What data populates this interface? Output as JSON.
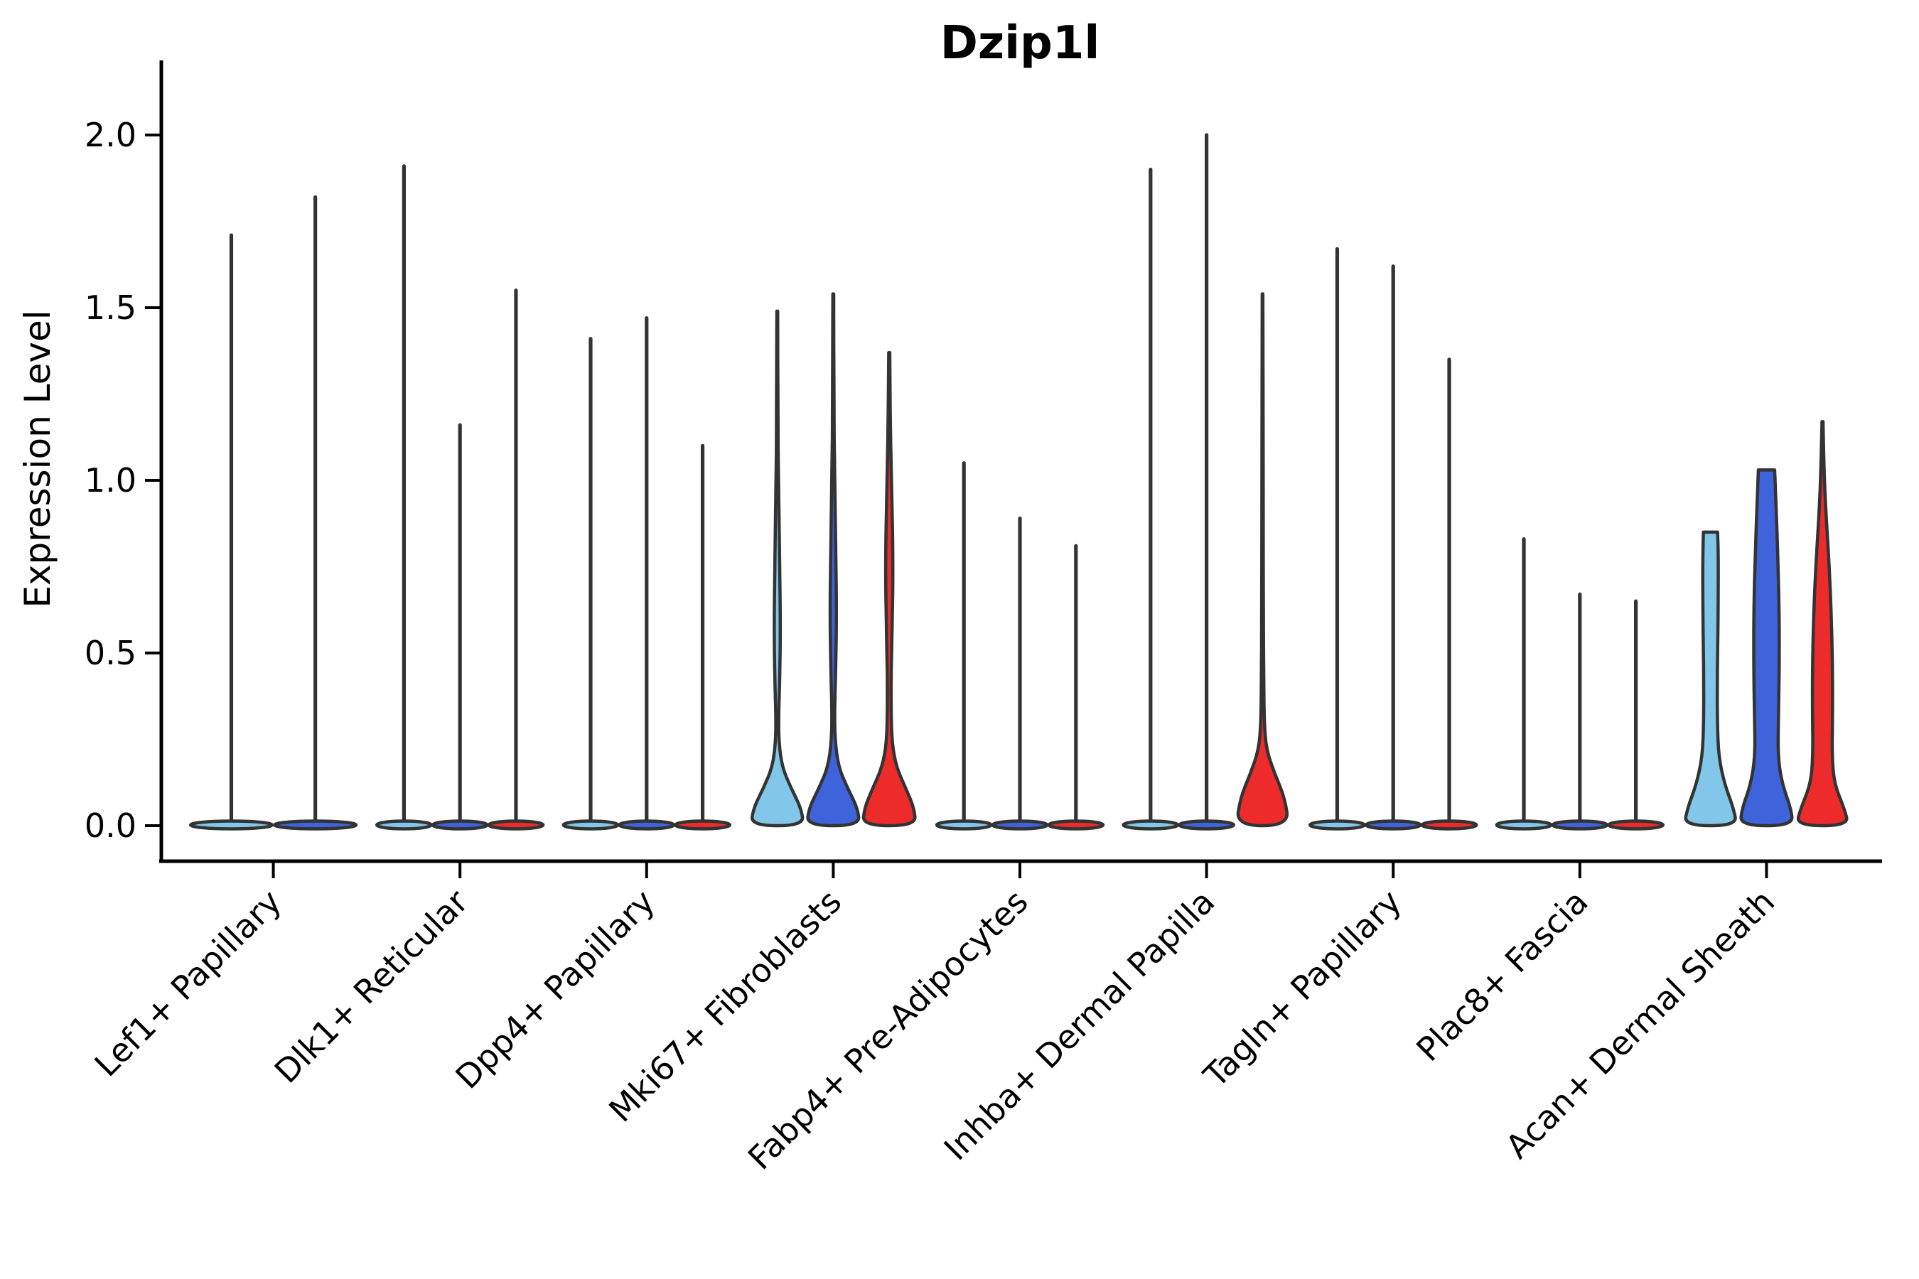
{
  "chart_data": {
    "type": "violin",
    "title": "Dzip1l",
    "ylabel": "Expression Level",
    "xlabel": "",
    "yticks": [
      0.0,
      0.5,
      1.0,
      1.5,
      2.0
    ],
    "ytick_labels": [
      "0.0",
      "0.5",
      "1.0",
      "1.5",
      "2.0"
    ],
    "axis_range": [
      -0.1,
      2.21
    ],
    "grid": false,
    "legend": "none",
    "groups_note": "up to 3 violins per category: lightblue, blue, red",
    "categories": [
      {
        "label": "Lef1+ Papillary",
        "violins": [
          {
            "fill": "lightblue",
            "max": 1.71,
            "style": "collapsed"
          },
          {
            "fill": "blue",
            "max": 1.82,
            "style": "collapsed"
          }
        ]
      },
      {
        "label": "Dlk1+ Reticular",
        "violins": [
          {
            "fill": "lightblue",
            "max": 1.91,
            "style": "collapsed"
          },
          {
            "fill": "blue",
            "max": 1.16,
            "style": "collapsed"
          },
          {
            "fill": "red",
            "max": 1.55,
            "style": "collapsed"
          }
        ]
      },
      {
        "label": "Dpp4+ Papillary",
        "violins": [
          {
            "fill": "lightblue",
            "max": 1.41,
            "style": "collapsed"
          },
          {
            "fill": "blue",
            "max": 1.47,
            "style": "collapsed"
          },
          {
            "fill": "red",
            "max": 1.1,
            "style": "collapsed"
          }
        ]
      },
      {
        "label": "Mki67+ Fibroblasts",
        "violins": [
          {
            "fill": "lightblue",
            "max": 1.49,
            "style": "body",
            "profile": [
              [
                1.49,
                0.015
              ],
              [
                1.2,
                0.02
              ],
              [
                0.95,
                0.05
              ],
              [
                0.72,
                0.1
              ],
              [
                0.55,
                0.115
              ],
              [
                0.42,
                0.09
              ],
              [
                0.32,
                0.05
              ],
              [
                0.24,
                0.06
              ],
              [
                0.17,
                0.18
              ],
              [
                0.11,
                0.5
              ],
              [
                0.05,
                0.88
              ],
              [
                0.0,
                0.97
              ]
            ]
          },
          {
            "fill": "blue",
            "max": 1.54,
            "style": "body",
            "profile": [
              [
                1.54,
                0.015
              ],
              [
                1.25,
                0.02
              ],
              [
                1.0,
                0.05
              ],
              [
                0.78,
                0.1
              ],
              [
                0.6,
                0.12
              ],
              [
                0.45,
                0.09
              ],
              [
                0.34,
                0.05
              ],
              [
                0.25,
                0.06
              ],
              [
                0.17,
                0.19
              ],
              [
                0.11,
                0.52
              ],
              [
                0.05,
                0.9
              ],
              [
                0.0,
                0.97
              ]
            ]
          },
          {
            "fill": "red",
            "max": 1.37,
            "style": "body",
            "profile": [
              [
                1.37,
                0.02
              ],
              [
                1.15,
                0.04
              ],
              [
                0.95,
                0.1
              ],
              [
                0.75,
                0.14
              ],
              [
                0.58,
                0.11
              ],
              [
                0.44,
                0.07
              ],
              [
                0.33,
                0.07
              ],
              [
                0.24,
                0.1
              ],
              [
                0.17,
                0.26
              ],
              [
                0.11,
                0.6
              ],
              [
                0.05,
                0.92
              ],
              [
                0.0,
                0.97
              ]
            ]
          }
        ]
      },
      {
        "label": "Fabp4+ Pre-Adipocytes",
        "violins": [
          {
            "fill": "lightblue",
            "max": 1.05,
            "style": "collapsed"
          },
          {
            "fill": "blue",
            "max": 0.89,
            "style": "collapsed"
          },
          {
            "fill": "red",
            "max": 0.81,
            "style": "collapsed"
          }
        ]
      },
      {
        "label": "Inhba+ Dermal Papilla",
        "violins": [
          {
            "fill": "lightblue",
            "max": 1.9,
            "style": "collapsed"
          },
          {
            "fill": "blue",
            "max": 2.0,
            "style": "collapsed"
          },
          {
            "fill": "red",
            "max": 1.54,
            "style": "body",
            "profile": [
              [
                1.54,
                0.012
              ],
              [
                1.2,
                0.02
              ],
              [
                0.9,
                0.025
              ],
              [
                0.6,
                0.03
              ],
              [
                0.42,
                0.045
              ],
              [
                0.3,
                0.06
              ],
              [
                0.22,
                0.14
              ],
              [
                0.15,
                0.45
              ],
              [
                0.08,
                0.82
              ],
              [
                0.0,
                0.97
              ]
            ]
          }
        ]
      },
      {
        "label": "Tagln+ Papillary",
        "violins": [
          {
            "fill": "lightblue",
            "max": 1.67,
            "style": "collapsed"
          },
          {
            "fill": "blue",
            "max": 1.62,
            "style": "collapsed"
          },
          {
            "fill": "red",
            "max": 1.35,
            "style": "collapsed"
          }
        ]
      },
      {
        "label": "Plac8+ Fascia",
        "violins": [
          {
            "fill": "lightblue",
            "max": 0.83,
            "style": "collapsed"
          },
          {
            "fill": "blue",
            "max": 0.67,
            "style": "collapsed"
          },
          {
            "fill": "red",
            "max": 0.65,
            "style": "collapsed"
          }
        ]
      },
      {
        "label": "Acan+ Dermal Sheath",
        "violins": [
          {
            "fill": "lightblue",
            "max": 0.85,
            "style": "body",
            "profile": [
              [
                0.85,
                0.26
              ],
              [
                0.78,
                0.29
              ],
              [
                0.6,
                0.28
              ],
              [
                0.45,
                0.25
              ],
              [
                0.3,
                0.25
              ],
              [
                0.2,
                0.3
              ],
              [
                0.12,
                0.52
              ],
              [
                0.05,
                0.85
              ],
              [
                0.0,
                0.97
              ]
            ]
          },
          {
            "fill": "blue",
            "max": 1.03,
            "style": "body",
            "profile": [
              [
                1.03,
                0.3
              ],
              [
                0.95,
                0.34
              ],
              [
                0.8,
                0.41
              ],
              [
                0.62,
                0.47
              ],
              [
                0.45,
                0.47
              ],
              [
                0.32,
                0.44
              ],
              [
                0.2,
                0.42
              ],
              [
                0.12,
                0.58
              ],
              [
                0.05,
                0.9
              ],
              [
                0.0,
                0.97
              ]
            ]
          },
          {
            "fill": "red",
            "max": 1.17,
            "style": "body",
            "profile": [
              [
                1.17,
                0.02
              ],
              [
                1.02,
                0.06
              ],
              [
                0.9,
                0.13
              ],
              [
                0.75,
                0.25
              ],
              [
                0.6,
                0.33
              ],
              [
                0.45,
                0.37
              ],
              [
                0.32,
                0.37
              ],
              [
                0.2,
                0.35
              ],
              [
                0.12,
                0.44
              ],
              [
                0.05,
                0.8
              ],
              [
                0.0,
                0.97
              ]
            ]
          }
        ]
      }
    ]
  },
  "colors": {
    "lightblue": "#82C7E9",
    "blue": "#3F63DB",
    "red": "#ED2B2B",
    "outline": "#333333",
    "axis": "#000000",
    "background": "#FFFFFF"
  }
}
